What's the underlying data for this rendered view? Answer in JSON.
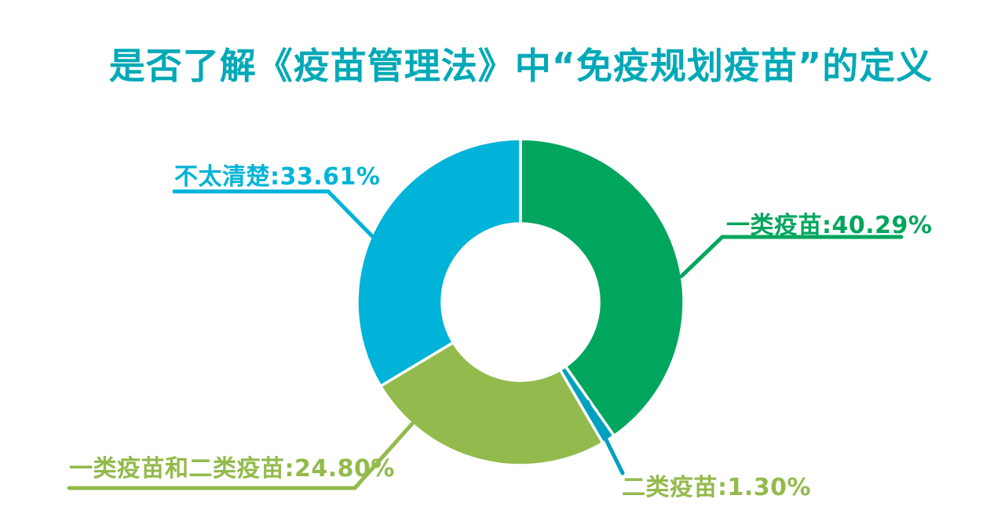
{
  "page": {
    "background": "#FFFFFF"
  },
  "header": {
    "title": "是否了解《疫苗管理法》中“免疫规划疫苗”的定义",
    "title_color": "#00A9B7"
  },
  "chart_data": {
    "type": "pie",
    "variant": "donut",
    "title": "是否了解《疫苗管理法》中“免疫规划疫苗”的定义",
    "start_angle_deg": 0,
    "direction": "clockwise",
    "inner_radius_ratio": 0.48,
    "segment_gap_color": "#FFFFFF",
    "legend_position": "callout-labels",
    "segments": [
      {
        "label": "一类疫苗",
        "value": 40.29,
        "display": "一类疫苗:40.29%",
        "color": "#00A65D",
        "label_color": "#00A65D"
      },
      {
        "label": "二类疫苗",
        "value": 1.3,
        "display": "二类疫苗:1.30%",
        "color": "#00A1BF",
        "label_color": "#93BA4C"
      },
      {
        "label": "一类疫苗和二类疫苗",
        "value": 24.8,
        "display": "一类疫苗和二类疫苗:24.80%",
        "color": "#93BA4C",
        "label_color": "#93BA4C"
      },
      {
        "label": "不太清楚",
        "value": 33.61,
        "display": "不太清楚:33.61%",
        "color": "#00B3D8",
        "label_color": "#00B3D8"
      }
    ]
  }
}
